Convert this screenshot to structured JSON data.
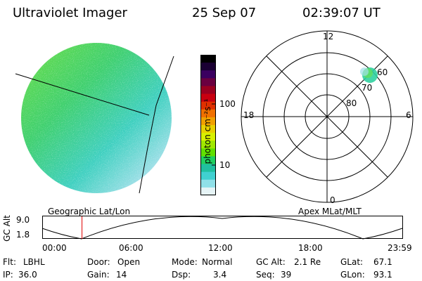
{
  "header": {
    "title": "Ultraviolet Imager",
    "date": "25 Sep 07",
    "time": "02:39:07 UT"
  },
  "colorbar": {
    "unit": "photon cm⁻²s⁻¹",
    "ticks": [
      "100",
      "10"
    ],
    "colors": [
      "#000000",
      "#1a0033",
      "#3a0060",
      "#6a0040",
      "#9a0020",
      "#c80010",
      "#e03000",
      "#f07000",
      "#f0a000",
      "#e8d000",
      "#d8f000",
      "#a0e800",
      "#60e000",
      "#20d060",
      "#20c0a0",
      "#40d0d0",
      "#90e0e8",
      "#e6f4f6"
    ]
  },
  "imager": {
    "name": "Geographic Lat/Lon"
  },
  "polar_plot": {
    "name": "Apex  MLat/MLT",
    "mlt_labels": [
      "12",
      "18",
      "6",
      "0"
    ],
    "mlat_labels": [
      "60",
      "70",
      "80"
    ]
  },
  "altitude_strip": {
    "ylabel": "GC Alt",
    "yticks": [
      "9.0",
      "1.8"
    ],
    "xticks": [
      "00:00",
      "06:00",
      "12:00",
      "18:00",
      "23:59"
    ],
    "marker_color": "#e00000",
    "marker_time": "02:39"
  },
  "status": {
    "flt": {
      "label": "Flt:",
      "value": "LBHL"
    },
    "ip": {
      "label": "IP:",
      "value": "36.0"
    },
    "door": {
      "label": "Door:",
      "value": "Open"
    },
    "gain": {
      "label": "Gain:",
      "value": "14"
    },
    "mode": {
      "label": "Mode:",
      "value": "Normal"
    },
    "dsp": {
      "label": "Dsp:",
      "value": "3.4"
    },
    "gcalt": {
      "label": "GC Alt:",
      "value": "2.1 Re"
    },
    "seq": {
      "label": "Seq:",
      "value": "39"
    },
    "glat": {
      "label": "GLat:",
      "value": "67.1"
    },
    "glon": {
      "label": "GLon:",
      "value": "93.1"
    }
  }
}
